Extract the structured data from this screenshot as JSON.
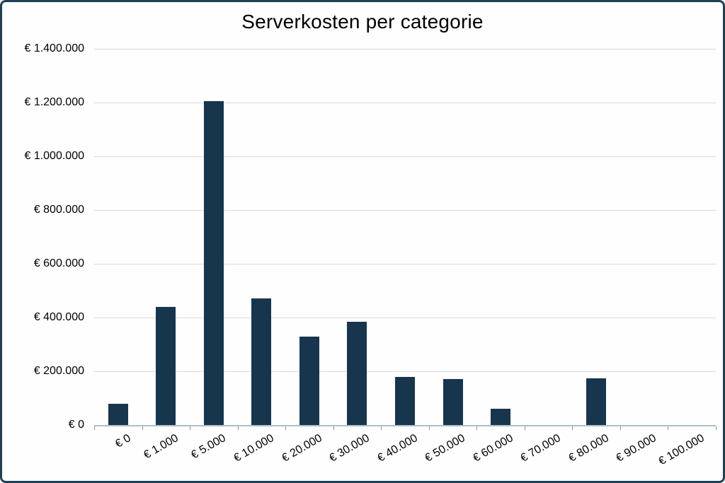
{
  "chart_data": {
    "type": "bar",
    "title": "Serverkosten per categorie",
    "categories": [
      "€ 0",
      "€ 1.000",
      "€ 5.000",
      "€ 10.000",
      "€ 20.000",
      "€ 30.000",
      "€ 40.000",
      "€ 50.000",
      "€ 60.000",
      "€ 70.000",
      "€ 80.000",
      "€ 90.000",
      "€ 100.000"
    ],
    "values": [
      80000,
      440000,
      1205000,
      470000,
      330000,
      385000,
      180000,
      170000,
      60000,
      0,
      175000,
      0,
      0
    ],
    "xlabel": "",
    "ylabel": "",
    "ylim": [
      0,
      1400000
    ],
    "y_tick_values": [
      0,
      200000,
      400000,
      600000,
      800000,
      1000000,
      1200000,
      1400000
    ],
    "y_tick_labels": [
      "€ 0",
      "€ 200.000",
      "€ 400.000",
      "€ 600.000",
      "€ 800.000",
      "€ 1.000.000",
      "€ 1.200.000",
      "€ 1.400.000"
    ],
    "grid": "horizontal",
    "legend_position": "none",
    "colors": {
      "bar": "#17364e",
      "frame_border": "#1e4055",
      "gridline": "#d9d9d9",
      "axis_line": "#adc0ca",
      "tick": "#7796a5",
      "text": "#000000",
      "background": "#fefefe"
    }
  }
}
